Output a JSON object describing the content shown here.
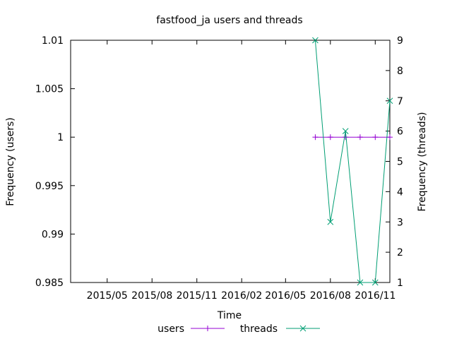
{
  "chart_data": {
    "type": "line",
    "title": "fastfood_ja users and threads",
    "xlabel": "Time",
    "ylabel": "Frequency (users)",
    "y2label": "Frequency (threads)",
    "x_ticks": [
      "2015/05",
      "2015/08",
      "2015/11",
      "2016/02",
      "2016/05",
      "2016/08",
      "2016/11"
    ],
    "xlim": [
      "2015-02-15",
      "2016-12-01"
    ],
    "ylim": [
      0.985,
      1.01
    ],
    "y_ticks": [
      "0.985",
      "0.99",
      "0.995",
      "1",
      "1.005",
      "1.01"
    ],
    "y2lim": [
      1,
      9
    ],
    "y2_ticks": [
      "1",
      "2",
      "3",
      "4",
      "5",
      "6",
      "7",
      "8",
      "9"
    ],
    "grid": false,
    "legend_position": "bottom",
    "series": [
      {
        "name": "users",
        "axis": "left",
        "color": "#9400d3",
        "marker": "plus",
        "points": [
          {
            "x": "2016-07-01",
            "y": 1
          },
          {
            "x": "2016-08-01",
            "y": 1
          },
          {
            "x": "2016-09-01",
            "y": 1
          },
          {
            "x": "2016-10-01",
            "y": 1
          },
          {
            "x": "2016-11-01",
            "y": 1
          },
          {
            "x": "2016-12-01",
            "y": 1
          }
        ]
      },
      {
        "name": "threads",
        "axis": "right",
        "color": "#009e73",
        "marker": "cross",
        "points": [
          {
            "x": "2016-07-01",
            "y": 9
          },
          {
            "x": "2016-08-01",
            "y": 3
          },
          {
            "x": "2016-09-01",
            "y": 6
          },
          {
            "x": "2016-10-01",
            "y": 1
          },
          {
            "x": "2016-11-01",
            "y": 1
          },
          {
            "x": "2016-12-01",
            "y": 7
          }
        ]
      }
    ]
  }
}
